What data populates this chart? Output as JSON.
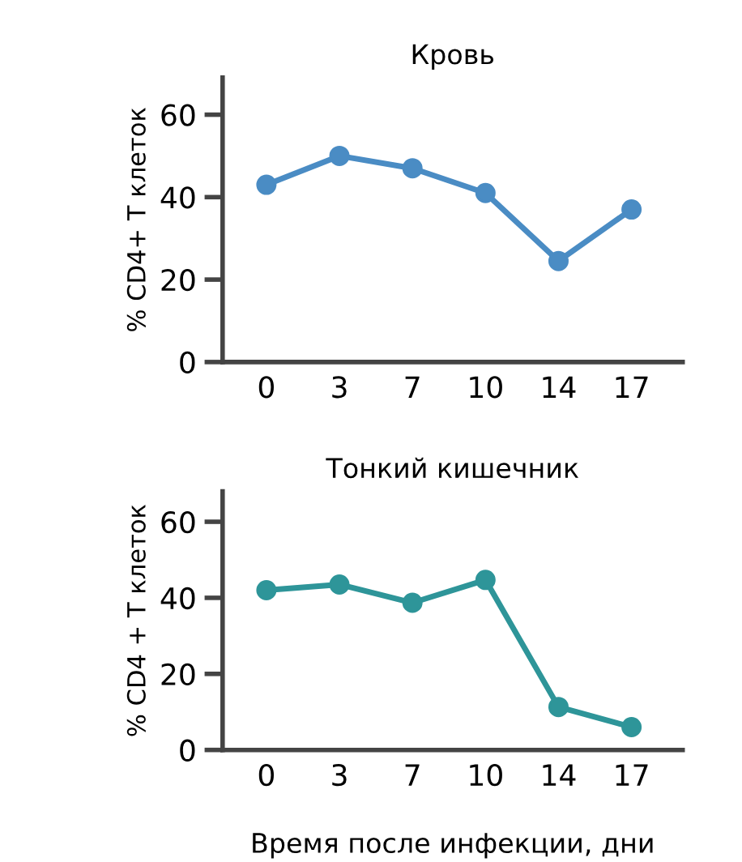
{
  "chart_data": [
    {
      "type": "line",
      "title": "Кровь",
      "ylabel": "% CD4+ T клеток",
      "categories": [
        "0",
        "3",
        "7",
        "10",
        "14",
        "17"
      ],
      "series": [
        {
          "color": "#4a8cc4",
          "values": [
            43,
            50,
            47,
            41,
            24.5,
            37
          ]
        }
      ],
      "ylim": [
        0,
        69
      ],
      "yticks": [
        0,
        20,
        40,
        60
      ],
      "marker": "circle",
      "grid": false,
      "legend": false
    },
    {
      "type": "line",
      "title": "Тонкий кишечник",
      "ylabel": "% CD4 + T клеток",
      "xlabel": "Время после инфекции, дни",
      "categories": [
        "0",
        "3",
        "7",
        "10",
        "14",
        "17"
      ],
      "series": [
        {
          "color": "#2e9599",
          "values": [
            42,
            43.5,
            38.7,
            44.7,
            11.3,
            6
          ]
        }
      ],
      "ylim": [
        0,
        68
      ],
      "yticks": [
        0,
        20,
        40,
        60
      ],
      "marker": "circle",
      "grid": false,
      "legend": false
    }
  ]
}
